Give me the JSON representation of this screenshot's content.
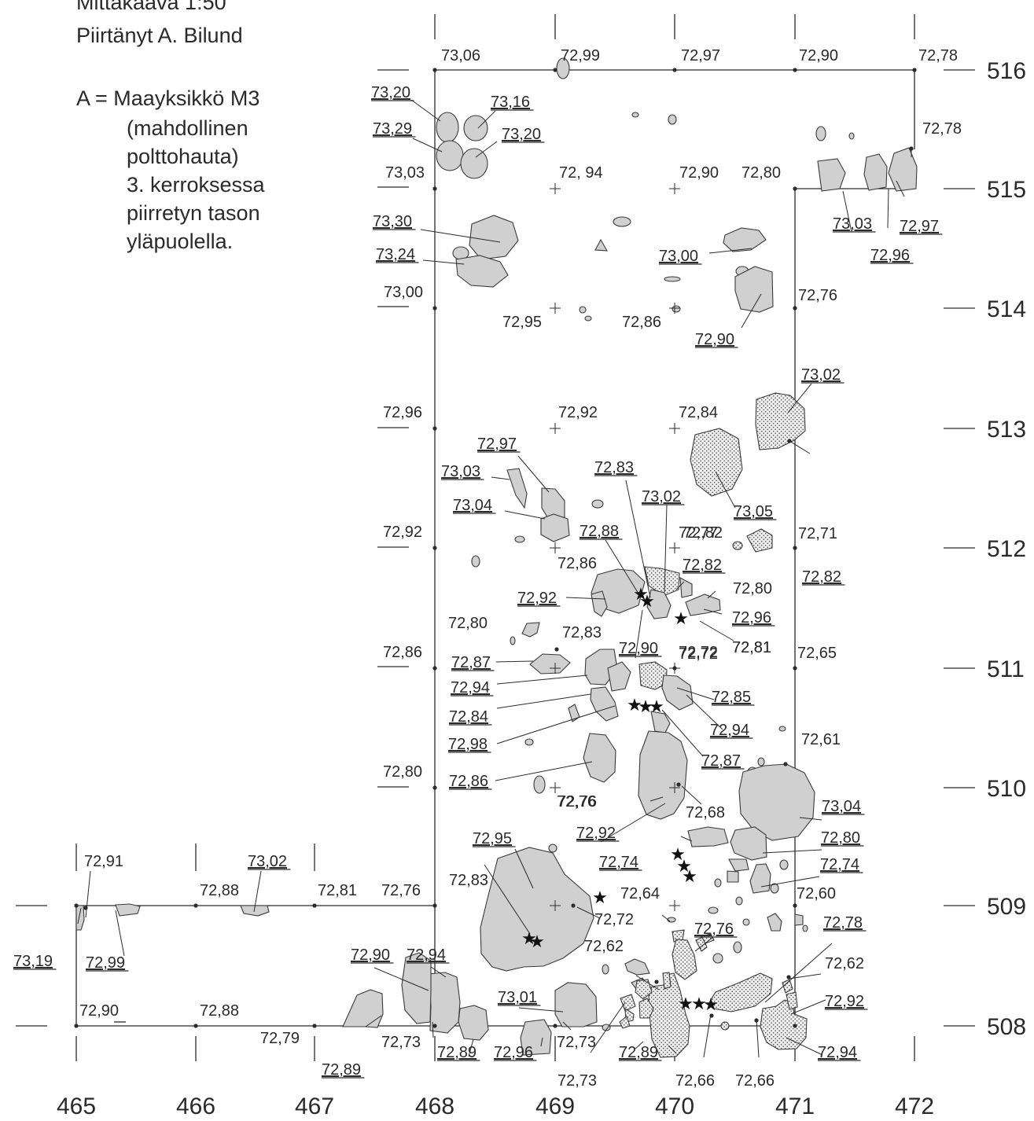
{
  "legend": {
    "scale": "Mittakaava 1:50",
    "drawn_by": "Piirtänyt A. Bilund",
    "a_key": "A = Maayksikkö M3",
    "a_lines": [
      "(mahdollinen",
      "polttohauta)",
      "3. kerroksessa",
      "piirretyn tason",
      "yläpuolella."
    ]
  },
  "axes": {
    "x_labels": [
      "465",
      "466",
      "467",
      "468",
      "469",
      "470",
      "471",
      "472"
    ],
    "y_labels": [
      "516",
      "515",
      "514",
      "513",
      "512",
      "511",
      "510",
      "509",
      "508"
    ]
  },
  "grid_levels": [
    "73,06",
    "72,99",
    "72,97",
    "72,90",
    "72,78",
    "73,03",
    "72, 94",
    "72,90",
    "72,80",
    "73,00",
    "72,95",
    "72,86",
    "72,76",
    "72,96",
    "72,92",
    "72,84",
    "72,92",
    "72,77",
    "72,71",
    "72,86",
    "72,72",
    "72,65",
    "72,80",
    "72,76",
    "72,91",
    "72,88",
    "72,81",
    "72,76",
    "72,90",
    "72,88",
    "72,79",
    "72,73",
    "72,73",
    "72,73",
    "72,66",
    "72,66",
    "72,78",
    "72,72",
    "72,61",
    "72,60",
    "72,62",
    "72,64",
    "72,62",
    "72,80",
    "72,83",
    "72,81",
    "72,86",
    "72,83",
    "72,72",
    "72,68",
    "72,76",
    "72,81",
    "72,82",
    "72,80"
  ],
  "feature_levels": [
    "73,20",
    "73,16",
    "73,29",
    "73,20",
    "73,30",
    "73,24",
    "73,00",
    "72,90",
    "73,03",
    "72,96",
    "72,97",
    "73,02",
    "73,05",
    "72,97",
    "73,03",
    "73,04",
    "72,83",
    "73,02",
    "72,88",
    "72,82",
    "72,82",
    "72,92",
    "72,96",
    "72,90",
    "72,87",
    "72,94",
    "72,84",
    "72,98",
    "72,85",
    "72,94",
    "72,87",
    "72,86",
    "72,92",
    "73,04",
    "72,95",
    "72,74",
    "72,80",
    "72,74",
    "72,76",
    "72,78",
    "72,92",
    "72,94",
    "73,02",
    "73,19",
    "72,99",
    "72,90",
    "72,94",
    "72,89",
    "72,89",
    "72,96",
    "73,01",
    "72,89"
  ],
  "finds_symbol": "★",
  "colors": {
    "ink": "#2b2b2b",
    "stone_fill": "#d0d0d0",
    "stone_stroke": "#3a3a3a",
    "stipple": "#555555"
  }
}
